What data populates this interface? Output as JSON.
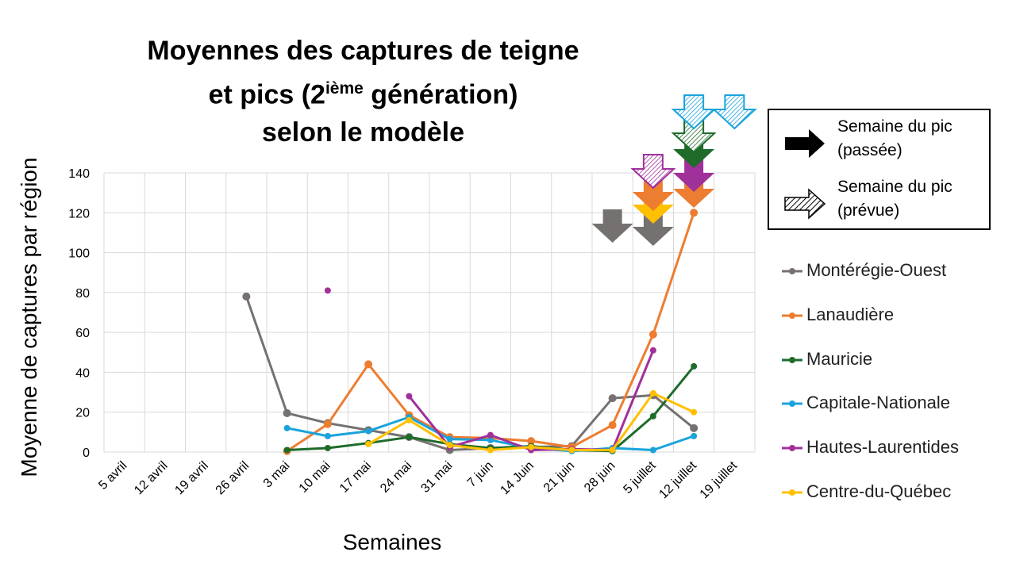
{
  "chart_data": {
    "type": "line",
    "title_line1": "Moyennes des captures de teigne",
    "title_line2_pre": "et pics (2",
    "title_line2_sup": "ième",
    "title_line2_post": " génération)",
    "title_line3": "selon le modèle",
    "xlabel": "Semaines",
    "ylabel": "Moyenne de captures par région",
    "ylim": [
      0,
      140
    ],
    "yticks": [
      0,
      20,
      40,
      60,
      80,
      100,
      120,
      140
    ],
    "grid": true,
    "legend_placement": "right",
    "categories": [
      "5 avril",
      "12 avril",
      "19 avril",
      "26 avril",
      "3 mai",
      "10 mai",
      "17 mai",
      "24 mai",
      "31 mai",
      "7 juin",
      "14 Juin",
      "21 juin",
      "28 juin",
      "5 juillet",
      "12 juillet",
      "19 juillet"
    ],
    "series": [
      {
        "name": "Montérégie-Ouest",
        "color": "#767171",
        "values": [
          null,
          null,
          null,
          78,
          19.5,
          14.5,
          11,
          7.5,
          1,
          2,
          2.5,
          3,
          27,
          28.5,
          12,
          null
        ]
      },
      {
        "name": "Lanaudière",
        "color": "#ED7D31",
        "values": [
          null,
          null,
          null,
          null,
          0.5,
          14,
          44,
          18.5,
          7.5,
          7,
          5.5,
          2.5,
          13.5,
          59,
          120,
          null
        ]
      },
      {
        "name": "Mauricie",
        "color": "#1E6B2A",
        "values": [
          null,
          null,
          null,
          null,
          1,
          2,
          4.5,
          7.5,
          4,
          2,
          3,
          1,
          0.5,
          18,
          43,
          null
        ]
      },
      {
        "name": "Capitale-Nationale",
        "color": "#1AA3DB",
        "values": [
          null,
          null,
          null,
          null,
          12,
          8,
          10.5,
          17.5,
          6.5,
          6,
          2,
          0.5,
          2,
          1,
          8,
          null
        ]
      },
      {
        "name": "Hautes-Laurentides",
        "color": "#A0309A",
        "values": [
          null,
          null,
          null,
          null,
          null,
          81,
          null,
          28,
          2.5,
          8.5,
          1,
          1.5,
          1,
          51,
          null,
          null
        ]
      },
      {
        "name": "Centre-du-Québec",
        "color": "#FFC000",
        "values": [
          null,
          null,
          null,
          null,
          null,
          null,
          4,
          16,
          3.5,
          1,
          2.5,
          1,
          1,
          29.5,
          20,
          null
        ]
      }
    ],
    "peak_arrows": [
      {
        "week": "28 juin",
        "region": "Montérégie-Ouest",
        "type": "passée",
        "color": "#767171"
      },
      {
        "week": "5 juillet",
        "region": "Montérégie-Ouest",
        "type": "passée",
        "color": "#767171"
      },
      {
        "week": "5 juillet",
        "region": "Centre-du-Québec",
        "type": "passée",
        "color": "#FFC000"
      },
      {
        "week": "5 juillet",
        "region": "Lanaudière",
        "type": "passée",
        "color": "#ED7D31"
      },
      {
        "week": "5 juillet",
        "region": "Hautes-Laurentides",
        "type": "prévue",
        "color": "#A0309A"
      },
      {
        "week": "12 juillet",
        "region": "Lanaudière",
        "type": "passée",
        "color": "#ED7D31"
      },
      {
        "week": "12 juillet",
        "region": "Hautes-Laurentides",
        "type": "passée",
        "color": "#A0309A"
      },
      {
        "week": "12 juillet",
        "region": "Mauricie",
        "type": "passée",
        "color": "#1E6B2A"
      },
      {
        "week": "12 juillet",
        "region": "Mauricie",
        "type": "prévue",
        "color": "#1E6B2A"
      },
      {
        "week": "12 juillet",
        "region": "Capitale-Nationale",
        "type": "prévue",
        "color": "#1AA3DB"
      },
      {
        "week": "19 juillet",
        "region": "Capitale-Nationale",
        "type": "prévue",
        "color": "#1AA3DB"
      }
    ],
    "arrow_legend": {
      "past_line1": "Semaine du pic",
      "past_line2": "(passée)",
      "forecast_line1": "Semaine du pic",
      "forecast_line2": "(prévue)"
    }
  }
}
